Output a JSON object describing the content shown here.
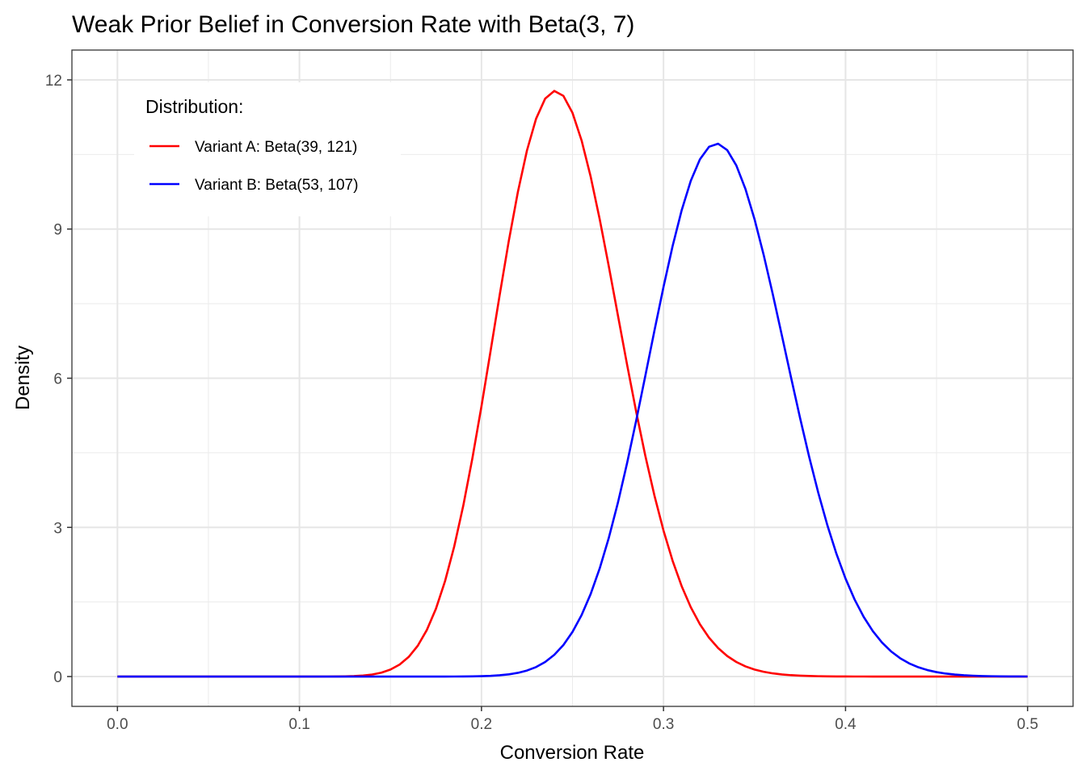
{
  "chart_data": {
    "type": "line",
    "title": "Weak Prior Belief in Conversion Rate with Beta(3, 7)",
    "xlabel": "Conversion Rate",
    "ylabel": "Density",
    "xlim": [
      -0.025,
      0.525
    ],
    "ylim": [
      -0.6,
      12.6
    ],
    "x_ticks": [
      0.0,
      0.1,
      0.2,
      0.3,
      0.4,
      0.5
    ],
    "x_tick_labels": [
      "0.0",
      "0.1",
      "0.2",
      "0.3",
      "0.4",
      "0.5"
    ],
    "y_ticks": [
      0,
      3,
      6,
      9,
      12
    ],
    "y_tick_labels": [
      "0",
      "3",
      "6",
      "9",
      "12"
    ],
    "grid": true,
    "legend": {
      "title": "Distribution:",
      "position": "top-left"
    },
    "series": [
      {
        "name": "Variant A: Beta(39, 121)",
        "alpha": 39,
        "beta": 121,
        "color": "#ff0000"
      },
      {
        "name": "Variant B: Beta(53, 107)",
        "alpha": 53,
        "beta": 107,
        "color": "#0000ff"
      }
    ],
    "x_range": [
      0,
      0.5
    ],
    "x_step": 0.005
  }
}
